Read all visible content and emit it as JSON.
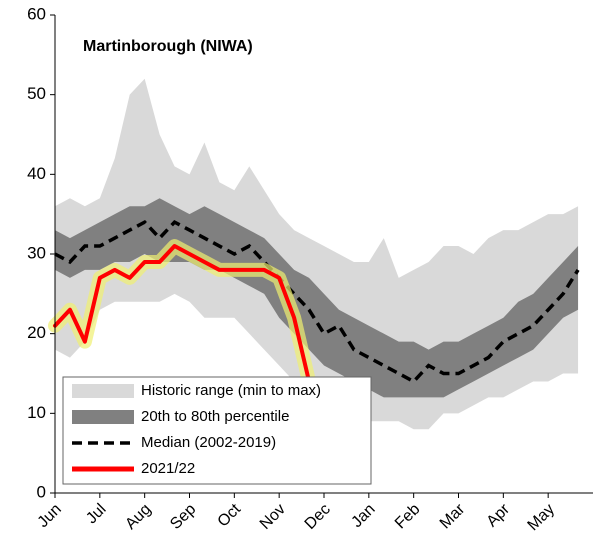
{
  "chart_data": {
    "type": "line",
    "title": "Martinborough (NIWA)",
    "categories": [
      "Jun",
      null,
      null,
      "Jul",
      null,
      null,
      "Aug",
      null,
      null,
      "Sep",
      null,
      null,
      "Oct",
      null,
      null,
      "Nov",
      null,
      null,
      "Dec",
      null,
      null,
      "Jan",
      null,
      null,
      "Feb",
      null,
      null,
      "Mar",
      null,
      null,
      "Apr",
      null,
      null,
      "May",
      null,
      null
    ],
    "ylim": [
      0,
      60
    ],
    "yticks": [
      0,
      10,
      20,
      30,
      40,
      50,
      60
    ],
    "series": [
      {
        "name": "Historic range (min to max)",
        "kind": "band",
        "color": "#d9d9d9",
        "low": [
          18,
          17,
          19,
          23,
          24,
          24,
          24,
          24,
          25,
          24,
          22,
          22,
          22,
          20,
          18,
          16,
          14,
          12,
          11,
          10,
          9,
          9,
          9,
          9,
          8,
          8,
          10,
          10,
          11,
          12,
          12,
          13,
          14,
          14,
          15,
          15
        ],
        "high": [
          36,
          37,
          36,
          37,
          42,
          50,
          52,
          45,
          41,
          40,
          44,
          39,
          38,
          41,
          38,
          35,
          33,
          32,
          31,
          30,
          29,
          29,
          32,
          27,
          28,
          29,
          31,
          31,
          30,
          32,
          33,
          33,
          34,
          35,
          35,
          36
        ]
      },
      {
        "name": "20th to 80th percentile",
        "kind": "band",
        "color": "#808080",
        "low": [
          28,
          27,
          28,
          28,
          29,
          29,
          30,
          29,
          29,
          29,
          28,
          28,
          27,
          26,
          25,
          22,
          20,
          18,
          16,
          15,
          14,
          13,
          12,
          12,
          12,
          12,
          12,
          13,
          14,
          15,
          16,
          17,
          18,
          20,
          22,
          23
        ],
        "high": [
          33,
          32,
          33,
          34,
          35,
          36,
          36,
          37,
          36,
          35,
          36,
          35,
          34,
          33,
          32,
          30,
          28,
          27,
          25,
          23,
          22,
          21,
          20,
          19,
          19,
          18,
          19,
          19,
          20,
          21,
          22,
          24,
          25,
          27,
          29,
          31
        ]
      },
      {
        "name": "Median (2002-2019)",
        "kind": "dashed",
        "color": "#000000",
        "values": [
          30,
          29,
          31,
          31,
          32,
          33,
          34,
          32,
          34,
          33,
          32,
          31,
          30,
          31,
          29,
          27,
          25,
          23,
          20,
          21,
          18,
          17,
          16,
          15,
          14,
          16,
          15,
          15,
          16,
          17,
          19,
          20,
          21,
          23,
          25,
          28
        ]
      },
      {
        "name": "2021/22",
        "kind": "line",
        "color": "#ff0000",
        "values": [
          21,
          23,
          19,
          27,
          28,
          27,
          29,
          29,
          31,
          30,
          29,
          28,
          28,
          28,
          28,
          27,
          22,
          14,
          12,
          null,
          null,
          null,
          null,
          null,
          null,
          null,
          null,
          null,
          null,
          null,
          null,
          null,
          null,
          null,
          null,
          null
        ]
      }
    ]
  }
}
